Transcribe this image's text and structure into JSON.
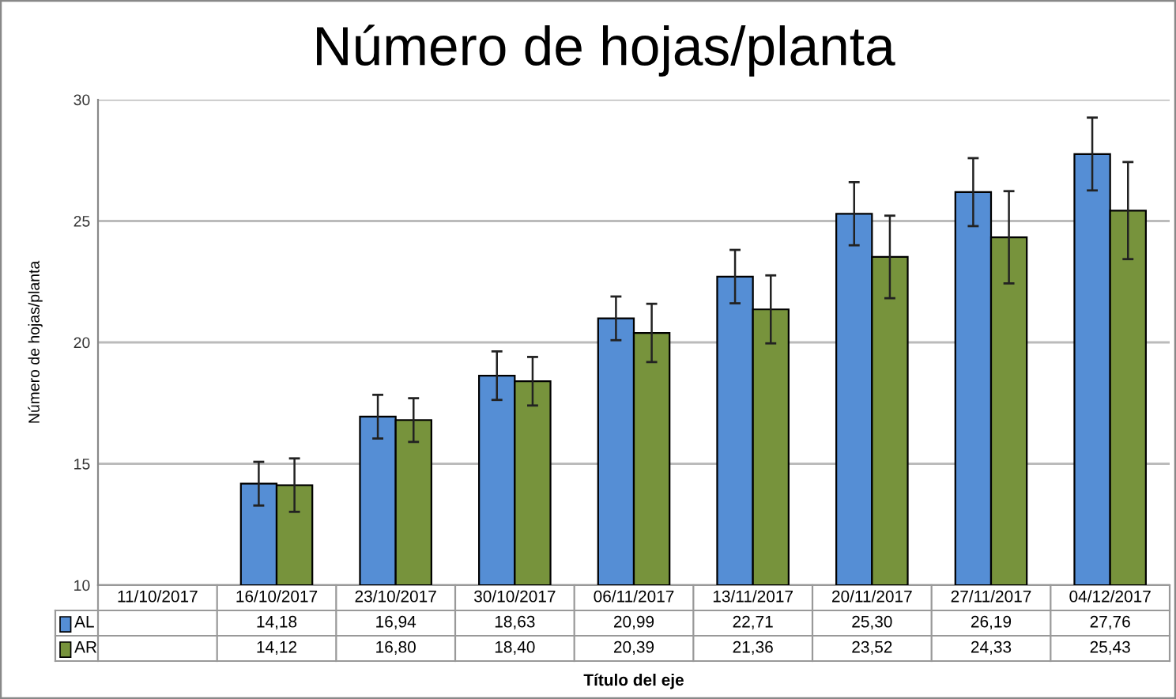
{
  "chart_data": {
    "type": "bar",
    "title": "Número de hojas/planta",
    "xlabel": "Título del eje",
    "ylabel": "Número de hojas/planta",
    "categories": [
      "11/10/2017",
      "16/10/2017",
      "23/10/2017",
      "30/10/2017",
      "06/11/2017",
      "13/11/2017",
      "20/11/2017",
      "27/11/2017",
      "04/12/2017"
    ],
    "series": [
      {
        "name": "AL",
        "color": "#558ed5",
        "values": [
          null,
          14.18,
          16.94,
          18.63,
          20.99,
          22.71,
          25.3,
          26.19,
          27.76
        ],
        "errors": [
          null,
          0.9,
          0.9,
          1.0,
          0.9,
          1.1,
          1.3,
          1.4,
          1.5
        ],
        "value_labels": [
          null,
          "14,18",
          "16,94",
          "18,63",
          "20,99",
          "22,71",
          "25,30",
          "26,19",
          "27,76"
        ]
      },
      {
        "name": "AR",
        "color": "#77933c",
        "values": [
          null,
          14.12,
          16.8,
          18.4,
          20.39,
          21.36,
          23.52,
          24.33,
          25.43
        ],
        "errors": [
          null,
          1.1,
          0.9,
          1.0,
          1.2,
          1.4,
          1.7,
          1.9,
          2.0
        ],
        "value_labels": [
          null,
          "14,12",
          "16,80",
          "18,40",
          "20,39",
          "21,36",
          "23,52",
          "24,33",
          "25,43"
        ]
      }
    ],
    "ylim": [
      10,
      30
    ],
    "yticks": [
      10,
      15,
      20,
      25,
      30
    ],
    "grid": "y",
    "legend": "bottom"
  }
}
